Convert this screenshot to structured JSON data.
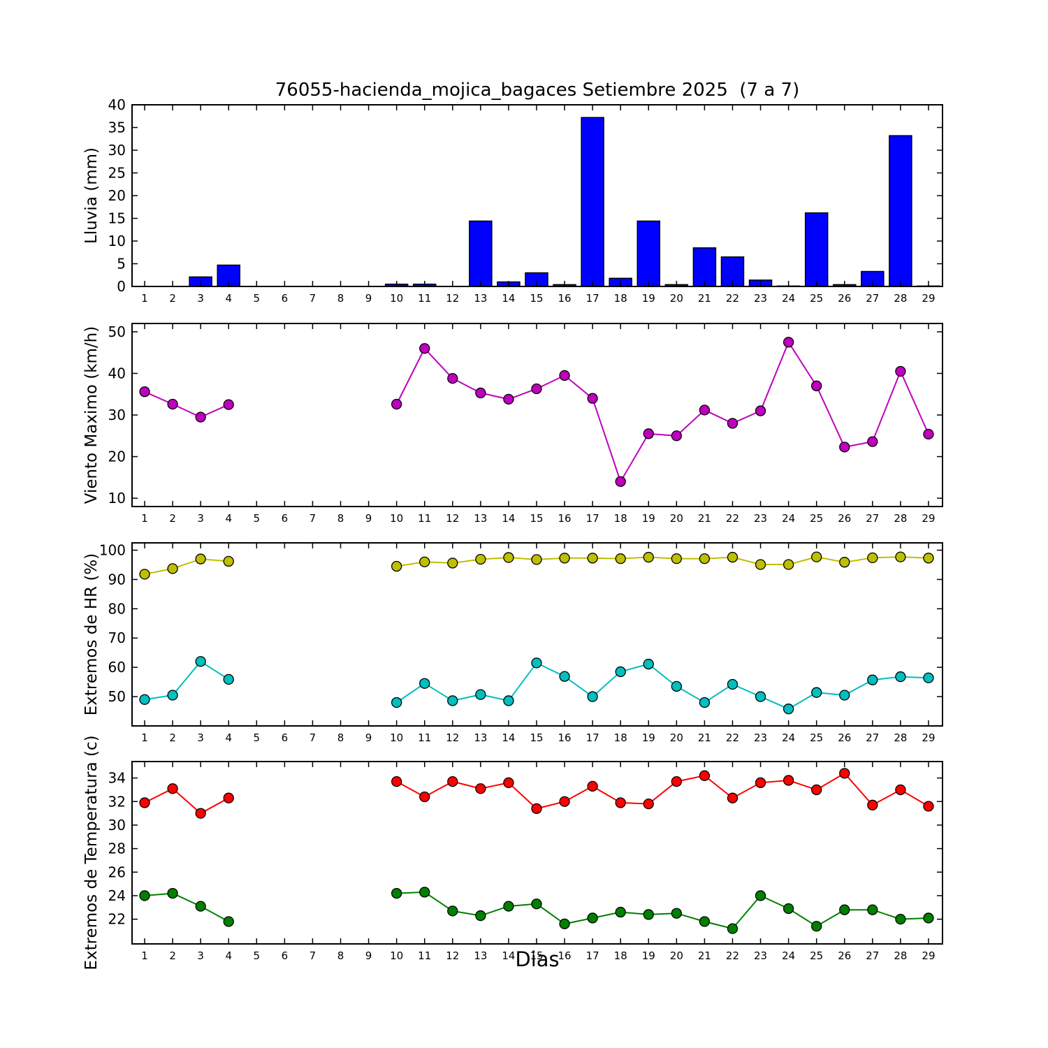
{
  "figure": {
    "title": "76055-hacienda_mojica_bagaces Setiembre 2025  (7 a 7)",
    "xlabel": "Dias",
    "background": "#FFFFFF",
    "frame_color": "#000000"
  },
  "days": [
    1,
    2,
    3,
    4,
    5,
    6,
    7,
    8,
    9,
    10,
    11,
    12,
    13,
    14,
    15,
    16,
    17,
    18,
    19,
    20,
    21,
    22,
    23,
    24,
    25,
    26,
    27,
    28,
    29
  ],
  "chart_data": [
    {
      "type": "bar",
      "name": "lluvia",
      "ylabel": "Lluvia (mm)",
      "ylim": [
        0,
        40
      ],
      "yticks": [
        0,
        5,
        10,
        15,
        20,
        25,
        30,
        35,
        40
      ],
      "bar_color": "#0000FF",
      "values": [
        0,
        0,
        2.1,
        4.7,
        0,
        0,
        0,
        0,
        0,
        0.5,
        0.5,
        0,
        14.4,
        1.0,
        3.0,
        0.4,
        37.2,
        1.8,
        14.4,
        0.4,
        8.5,
        6.5,
        1.4,
        0.1,
        16.2,
        0.4,
        3.3,
        33.2,
        0.1
      ]
    },
    {
      "type": "line",
      "name": "viento-maximo",
      "ylabel": "Viento Maximo (km/h)",
      "ylim": [
        8,
        52
      ],
      "yticks": [
        10,
        20,
        30,
        40,
        50
      ],
      "series": [
        {
          "name": "viento_maximo",
          "color": "#BF00BF",
          "values": [
            35.6,
            32.6,
            29.5,
            32.5,
            null,
            null,
            null,
            null,
            null,
            32.6,
            46.0,
            38.8,
            35.3,
            33.8,
            36.3,
            39.5,
            34.0,
            14.0,
            25.5,
            25.0,
            31.2,
            28.0,
            31.0,
            47.5,
            37.0,
            22.3,
            23.6,
            40.5,
            25.4
          ]
        }
      ]
    },
    {
      "type": "line",
      "name": "extremos-hr",
      "ylabel": "Extremos de HR (%)",
      "ylim": [
        40,
        102.5
      ],
      "yticks": [
        50,
        60,
        70,
        80,
        90,
        100
      ],
      "series": [
        {
          "name": "hr_maxima",
          "color": "#BFBF00",
          "values": [
            91.8,
            93.7,
            97.0,
            96.2,
            null,
            null,
            null,
            null,
            null,
            94.5,
            96.0,
            95.6,
            96.9,
            97.5,
            96.8,
            97.3,
            97.3,
            97.1,
            97.6,
            97.1,
            97.1,
            97.6,
            95.1,
            95.1,
            97.7,
            95.9,
            97.4,
            97.7,
            97.3
          ]
        },
        {
          "name": "hr_minima",
          "color": "#00BFBF",
          "values": [
            49.0,
            50.5,
            62.0,
            55.9,
            null,
            null,
            null,
            null,
            null,
            48.0,
            54.5,
            48.6,
            50.7,
            48.6,
            61.5,
            56.9,
            50.0,
            58.5,
            61.1,
            53.5,
            48.0,
            54.2,
            50.0,
            45.8,
            51.4,
            50.5,
            55.7,
            56.8,
            56.4
          ]
        }
      ]
    },
    {
      "type": "line",
      "name": "extremos-temperatura",
      "ylabel": "Extremos de Temperatura (c)",
      "ylim": [
        19.9,
        35.4
      ],
      "yticks": [
        22,
        24,
        26,
        28,
        30,
        32,
        34
      ],
      "series": [
        {
          "name": "temp_maxima",
          "color": "#FF0000",
          "values": [
            31.9,
            33.1,
            31.0,
            32.3,
            null,
            null,
            null,
            null,
            null,
            33.7,
            32.4,
            33.7,
            33.1,
            33.6,
            31.4,
            32.0,
            33.3,
            31.9,
            31.8,
            33.7,
            34.2,
            32.3,
            33.6,
            33.8,
            33.0,
            34.4,
            31.7,
            33.0,
            31.6
          ]
        },
        {
          "name": "temp_minima",
          "color": "#008000",
          "values": [
            24.0,
            24.2,
            23.1,
            21.8,
            null,
            null,
            null,
            null,
            null,
            24.2,
            24.3,
            22.7,
            22.3,
            23.1,
            23.3,
            21.6,
            22.1,
            22.6,
            22.4,
            22.5,
            21.8,
            21.2,
            24.0,
            22.9,
            21.4,
            22.8,
            22.8,
            22.0,
            22.1
          ]
        }
      ]
    }
  ]
}
